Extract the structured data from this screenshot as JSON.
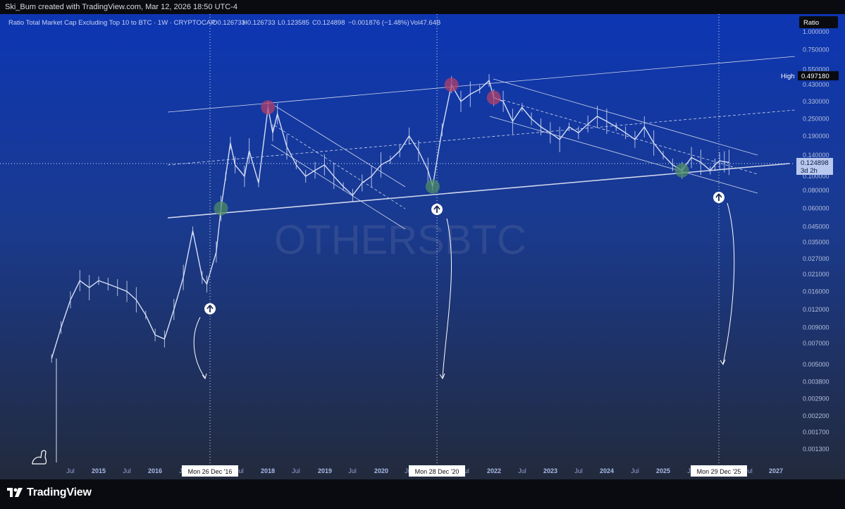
{
  "header": {
    "credit": "Ski_Bum created with TradingView.com, Mar 12, 2026 18:50 UTC-4"
  },
  "legend": {
    "symbol": "Ratio Total Market Cap Excluding Top 10 to BTC · 1W · CRYPTOCAP",
    "open": "O0.126733",
    "high": "H0.126733",
    "low": "L0.123585",
    "close": "C0.124898",
    "change": "−0.001876 (−1.48%)",
    "volume": "Vol47.64B"
  },
  "watermark": "OTHERSBTC",
  "scale_mode_label": "Ratio",
  "high_marker": {
    "label": "High",
    "value": "0.497180"
  },
  "current_price": {
    "value": "0.124898",
    "countdown": "3d 2h"
  },
  "footer": {
    "brand": "TradingView"
  },
  "colors": {
    "bg_top": "#0d36b3",
    "bg_bottom": "#222a3c",
    "candles": "#d6def5",
    "lines": "#cfd6ec",
    "peak_marker": "#b0406a",
    "trough_marker": "#4e8b66",
    "axis_label": "#9aa6c8"
  },
  "chart_data": {
    "type": "line",
    "title": "Ratio Total Market Cap Excluding Top 10 to BTC · 1W · CRYPTOCAP",
    "scale": "log",
    "ylim": [
      0.0011,
      1.15
    ],
    "y_ticks": [
      "1.000000",
      "0.750000",
      "0.550000",
      "0.430000",
      "0.330000",
      "0.250000",
      "0.190000",
      "0.140000",
      "0.100000",
      "0.080000",
      "0.060000",
      "0.045000",
      "0.035000",
      "0.027000",
      "0.021000",
      "0.016000",
      "0.012000",
      "0.009000",
      "0.007000",
      "0.005000",
      "0.003800",
      "0.002900",
      "0.002200",
      "0.001700",
      "0.001300"
    ],
    "x_ticks": [
      "Jul",
      "2015",
      "Jul",
      "2016",
      "Jul",
      "Jul",
      "2018",
      "Jul",
      "2019",
      "Jul",
      "2020",
      "Jul",
      "2021",
      "Jul",
      "2022",
      "Jul",
      "2023",
      "Jul",
      "2024",
      "Jul",
      "2025",
      "Jul",
      "2026",
      "Jul",
      "2027"
    ],
    "x_highlight_labels": [
      "Mon 26 Dec '16",
      "Mon 28 Dec '20",
      "Mon 29 Dec '25"
    ],
    "series": [
      {
        "x": [
          "2014-03",
          "2014-05",
          "2014-07",
          "2014-09",
          "2014-11",
          "2015-01",
          "2015-03",
          "2015-05",
          "2015-07",
          "2015-09",
          "2015-11",
          "2016-01",
          "2016-03",
          "2016-05",
          "2016-07",
          "2016-09",
          "2016-11",
          "2016-12",
          "2017-02",
          "2017-03",
          "2017-04",
          "2017-05",
          "2017-06",
          "2017-08",
          "2017-09",
          "2017-11",
          "2018-01",
          "2018-02",
          "2018-03",
          "2018-05",
          "2018-07",
          "2018-09",
          "2018-11",
          "2019-01",
          "2019-03",
          "2019-05",
          "2019-07",
          "2019-09",
          "2019-11",
          "2020-01",
          "2020-03",
          "2020-05",
          "2020-07",
          "2020-09",
          "2020-11",
          "2020-12",
          "2021-02",
          "2021-04",
          "2021-06",
          "2021-08",
          "2021-10",
          "2021-12",
          "2022-01",
          "2022-03",
          "2022-05",
          "2022-07",
          "2022-09",
          "2022-11",
          "2023-01",
          "2023-03",
          "2023-05",
          "2023-07",
          "2023-09",
          "2023-11",
          "2024-01",
          "2024-03",
          "2024-05",
          "2024-07",
          "2024-09",
          "2024-11",
          "2025-01",
          "2025-03",
          "2025-05",
          "2025-07",
          "2025-09",
          "2025-11",
          "2025-12",
          "2026-01",
          "2026-02",
          "2026-03"
        ],
        "y": [
          0.0055,
          0.009,
          0.014,
          0.019,
          0.017,
          0.019,
          0.018,
          0.017,
          0.016,
          0.014,
          0.011,
          0.008,
          0.0075,
          0.012,
          0.02,
          0.042,
          0.02,
          0.018,
          0.03,
          0.06,
          0.1,
          0.17,
          0.12,
          0.1,
          0.15,
          0.09,
          0.3,
          0.2,
          0.27,
          0.16,
          0.12,
          0.1,
          0.11,
          0.12,
          0.1,
          0.085,
          0.074,
          0.09,
          0.1,
          0.12,
          0.13,
          0.15,
          0.19,
          0.15,
          0.11,
          0.085,
          0.21,
          0.43,
          0.33,
          0.37,
          0.4,
          0.46,
          0.35,
          0.33,
          0.24,
          0.3,
          0.25,
          0.22,
          0.2,
          0.18,
          0.22,
          0.2,
          0.23,
          0.26,
          0.24,
          0.22,
          0.2,
          0.18,
          0.22,
          0.17,
          0.14,
          0.12,
          0.11,
          0.135,
          0.125,
          0.11,
          0.12,
          0.128,
          0.126,
          0.1249
        ]
      }
    ],
    "peaks": [
      "2018-01",
      "2021-04",
      "2022-01"
    ],
    "troughs": [
      "2017-03",
      "2019-08",
      "2020-12",
      "2025-05"
    ]
  }
}
